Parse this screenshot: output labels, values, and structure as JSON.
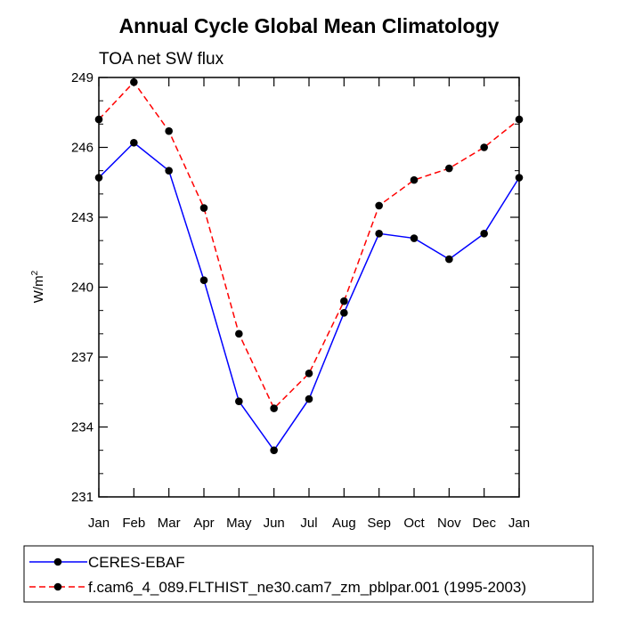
{
  "chart_data": {
    "type": "line",
    "title": "Annual Cycle Global Mean Climatology",
    "subtitle": "TOA net SW flux",
    "xlabel": "",
    "ylabel": "W/m",
    "ylabel_superscript": "2",
    "categories": [
      "Jan",
      "Feb",
      "Mar",
      "Apr",
      "May",
      "Jun",
      "Jul",
      "Aug",
      "Sep",
      "Oct",
      "Nov",
      "Dec",
      "Jan"
    ],
    "ylim": [
      231,
      249
    ],
    "yticks": [
      231,
      234,
      237,
      240,
      243,
      246,
      249
    ],
    "ytick_labels": [
      "231",
      "234",
      "237",
      "240",
      "243",
      "246",
      "249"
    ],
    "legend_position": "bottom",
    "series": [
      {
        "name": "CERES-EBAF",
        "color": "#0000ff",
        "dash": "solid",
        "marker": "circle",
        "values": [
          244.7,
          246.2,
          245.0,
          240.3,
          235.1,
          233.0,
          235.2,
          238.9,
          242.3,
          242.1,
          241.2,
          242.3,
          244.7
        ]
      },
      {
        "name": "f.cam6_4_089.FLTHIST_ne30.cam7_zm_pblpar.001 (1995-2003)",
        "color": "#ff0000",
        "dash": "dashed",
        "marker": "circle",
        "values": [
          247.2,
          248.8,
          246.7,
          243.4,
          238.0,
          234.8,
          236.3,
          239.4,
          243.5,
          244.6,
          245.1,
          246.0,
          247.2
        ]
      }
    ]
  }
}
